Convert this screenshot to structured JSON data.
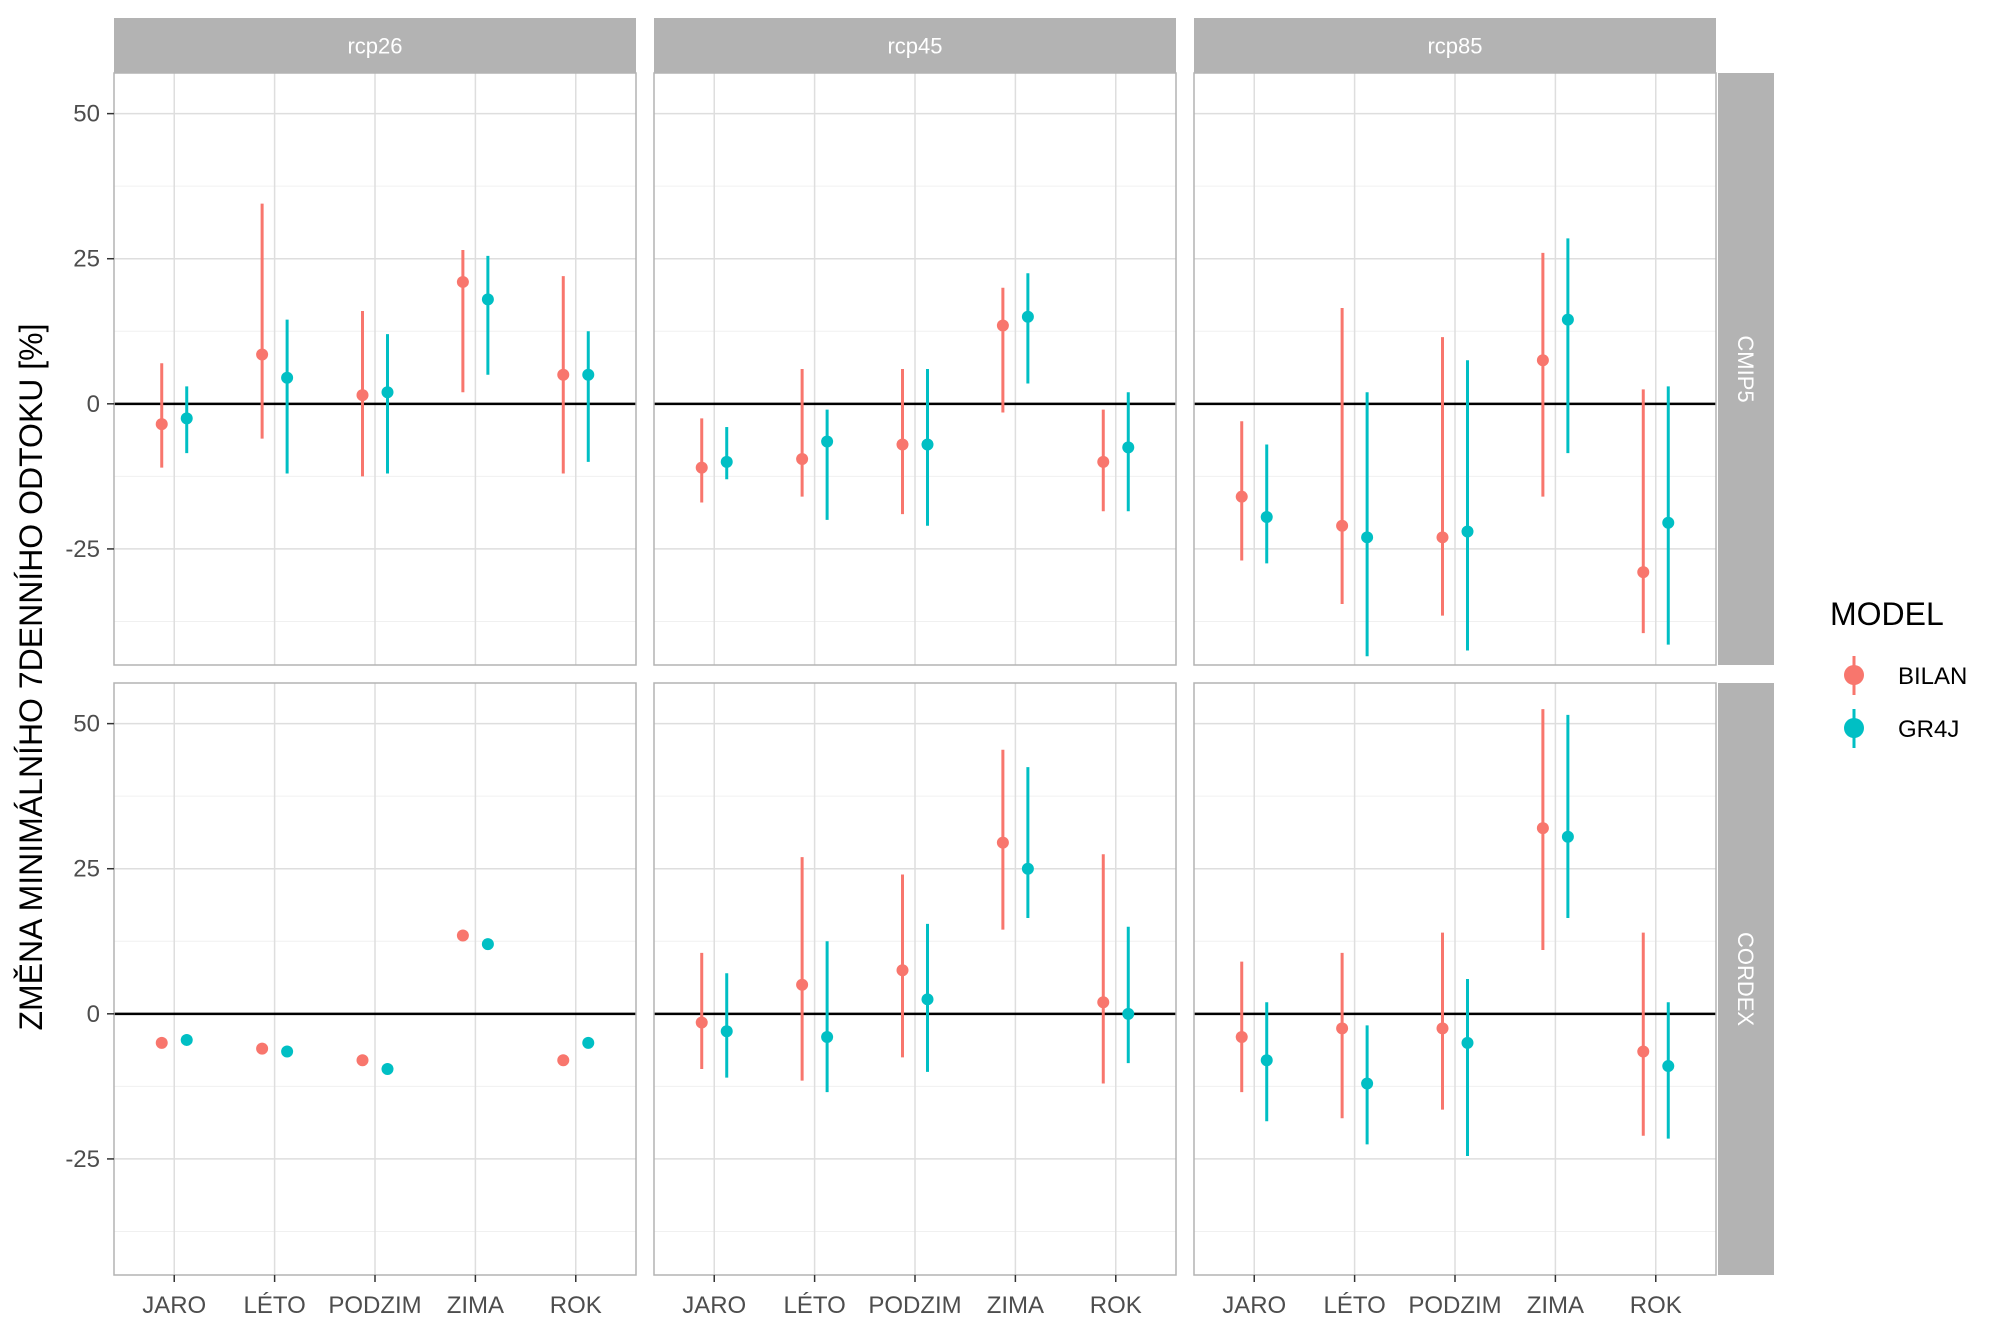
{
  "chart_data": {
    "type": "scatter",
    "ylabel": "ZMĚNA MINIMÁLNÍHO 7DENNÍHO ODTOKU [%]",
    "xlabel": "",
    "categories": [
      "JARO",
      "LÉTO",
      "PODZIM",
      "ZIMA",
      "ROK"
    ],
    "y_ticks": [
      "50",
      "25",
      "0",
      "-25"
    ],
    "ylim": [
      -45,
      57
    ],
    "hline": 0,
    "grid": true,
    "columns": [
      "rcp26",
      "rcp45",
      "rcp85"
    ],
    "rows": [
      "CMIP5",
      "CORDEX"
    ],
    "legend": {
      "title": "MODEL",
      "position": "right",
      "entries": [
        {
          "label": "BILAN",
          "color": "#F8766D"
        },
        {
          "label": "GR4J",
          "color": "#00BFC4"
        }
      ]
    },
    "panels": [
      {
        "row": "CMIP5",
        "column": "rcp26",
        "series": [
          {
            "name": "BILAN",
            "points": [
              [
                -3.5,
                -11,
                7
              ],
              [
                8.5,
                -6,
                34.5
              ],
              [
                1.5,
                -12.5,
                16
              ],
              [
                21,
                2,
                26.5
              ],
              [
                5,
                -12,
                22
              ]
            ]
          },
          {
            "name": "GR4J",
            "points": [
              [
                -2.5,
                -8.5,
                3
              ],
              [
                4.5,
                -12,
                14.5
              ],
              [
                2,
                -12,
                12
              ],
              [
                18,
                5,
                25.5
              ],
              [
                5,
                -10,
                12.5
              ]
            ]
          }
        ]
      },
      {
        "row": "CMIP5",
        "column": "rcp45",
        "series": [
          {
            "name": "BILAN",
            "points": [
              [
                -11,
                -17,
                -2.5
              ],
              [
                -9.5,
                -16,
                6
              ],
              [
                -7,
                -19,
                6
              ],
              [
                13.5,
                -1.5,
                20
              ],
              [
                -10,
                -18.5,
                -1
              ]
            ]
          },
          {
            "name": "GR4J",
            "points": [
              [
                -10,
                -13,
                -4
              ],
              [
                -6.5,
                -20,
                -1
              ],
              [
                -7,
                -21,
                6
              ],
              [
                15,
                3.5,
                22.5
              ],
              [
                -7.5,
                -18.5,
                2
              ]
            ]
          }
        ]
      },
      {
        "row": "CMIP5",
        "column": "rcp85",
        "series": [
          {
            "name": "BILAN",
            "points": [
              [
                -16,
                -27,
                -3
              ],
              [
                -21,
                -34.5,
                16.5
              ],
              [
                -23,
                -36.5,
                11.5
              ],
              [
                7.5,
                -16,
                26
              ],
              [
                -29,
                -39.5,
                2.5
              ]
            ]
          },
          {
            "name": "GR4J",
            "points": [
              [
                -19.5,
                -27.5,
                -7
              ],
              [
                -23,
                -43.5,
                2
              ],
              [
                -22,
                -42.5,
                7.5
              ],
              [
                14.5,
                -8.5,
                28.5
              ],
              [
                -20.5,
                -41.5,
                3
              ]
            ]
          }
        ]
      },
      {
        "row": "CORDEX",
        "column": "rcp26",
        "series": [
          {
            "name": "BILAN",
            "points": [
              [
                -5,
                -5,
                -5
              ],
              [
                -6,
                -6,
                -6
              ],
              [
                -8,
                -8,
                -8
              ],
              [
                13.5,
                13.5,
                13.5
              ],
              [
                -8,
                -8,
                -8
              ]
            ]
          },
          {
            "name": "GR4J",
            "points": [
              [
                -4.5,
                -4.5,
                -4.5
              ],
              [
                -6.5,
                -6.5,
                -6.5
              ],
              [
                -9.5,
                -9.5,
                -9.5
              ],
              [
                12,
                12,
                12
              ],
              [
                -5,
                -5,
                -5
              ]
            ]
          }
        ]
      },
      {
        "row": "CORDEX",
        "column": "rcp45",
        "series": [
          {
            "name": "BILAN",
            "points": [
              [
                -1.5,
                -9.5,
                10.5
              ],
              [
                5,
                -11.5,
                27
              ],
              [
                7.5,
                -7.5,
                24
              ],
              [
                29.5,
                14.5,
                45.5
              ],
              [
                2,
                -12,
                27.5
              ]
            ]
          },
          {
            "name": "GR4J",
            "points": [
              [
                -3,
                -11,
                7
              ],
              [
                -4,
                -13.5,
                12.5
              ],
              [
                2.5,
                -10,
                15.5
              ],
              [
                25,
                16.5,
                42.5
              ],
              [
                0,
                -8.5,
                15
              ]
            ]
          }
        ]
      },
      {
        "row": "CORDEX",
        "column": "rcp85",
        "series": [
          {
            "name": "BILAN",
            "points": [
              [
                -4,
                -13.5,
                9
              ],
              [
                -2.5,
                -18,
                10.5
              ],
              [
                -2.5,
                -16.5,
                14
              ],
              [
                32,
                11,
                52.5
              ],
              [
                -6.5,
                -21,
                14
              ]
            ]
          },
          {
            "name": "GR4J",
            "points": [
              [
                -8,
                -18.5,
                2
              ],
              [
                -12,
                -22.5,
                -2
              ],
              [
                -5,
                -24.5,
                6
              ],
              [
                30.5,
                16.5,
                51.5
              ],
              [
                -9,
                -21.5,
                2
              ]
            ]
          }
        ]
      }
    ]
  }
}
